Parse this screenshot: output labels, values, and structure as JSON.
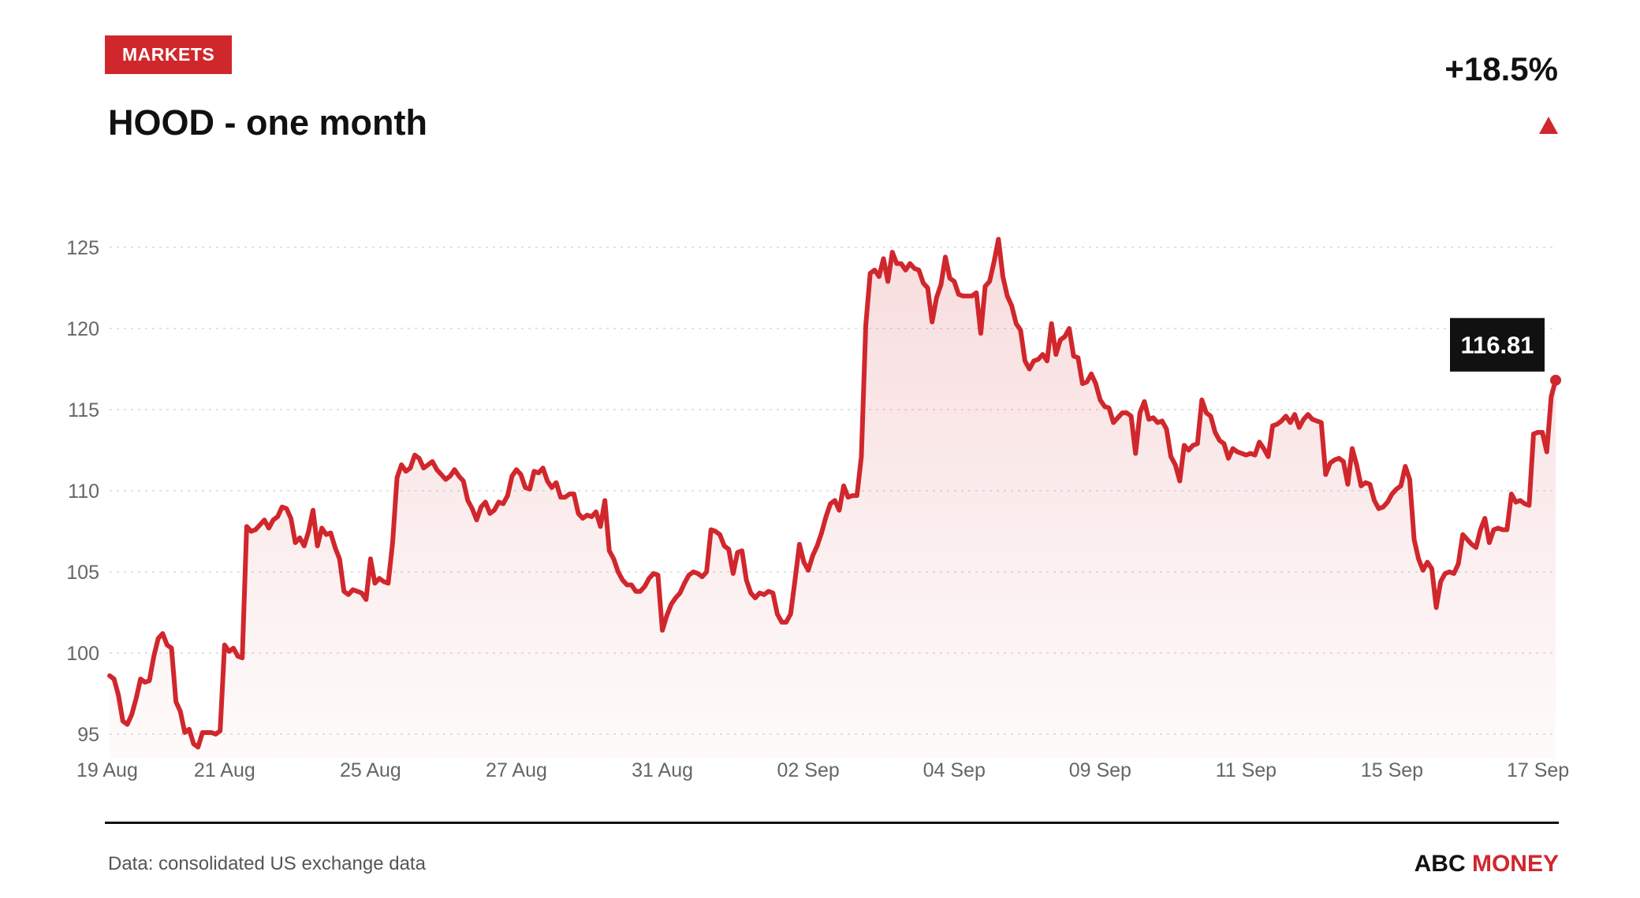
{
  "header": {
    "badge": "MARKETS",
    "title": "HOOD - one month",
    "change": "+18.5%",
    "direction_icon": "up-triangle-icon"
  },
  "footer": {
    "source": "Data: consolidated US exchange data",
    "brand_part1": "ABC",
    "brand_part2": "MONEY"
  },
  "colors": {
    "accent": "#d0272d",
    "text": "#111111",
    "axis_text": "#666666",
    "grid": "#d9d9d9",
    "label_bg": "#111111",
    "label_text": "#ffffff"
  },
  "chart_data": {
    "type": "area",
    "title": "HOOD - one month",
    "ylim": [
      93.5,
      126
    ],
    "yticks": [
      95,
      100,
      105,
      110,
      115,
      120,
      125
    ],
    "grid": "horizontal dotted",
    "xticks": [
      {
        "index": 0,
        "label": "19 Aug"
      },
      {
        "index": 26,
        "label": "21 Aug"
      },
      {
        "index": 59,
        "label": "25 Aug"
      },
      {
        "index": 92,
        "label": "27 Aug"
      },
      {
        "index": 125,
        "label": "31 Aug"
      },
      {
        "index": 158,
        "label": "02 Sep"
      },
      {
        "index": 191,
        "label": "04 Sep"
      },
      {
        "index": 224,
        "label": "09 Sep"
      },
      {
        "index": 257,
        "label": "11 Sep"
      },
      {
        "index": 290,
        "label": "15 Sep"
      },
      {
        "index": 323,
        "label": "17 Sep"
      }
    ],
    "last_value_label": "116.81",
    "values": [
      98.6,
      98.4,
      97.4,
      95.8,
      95.6,
      96.2,
      97.2,
      98.4,
      98.2,
      98.3,
      99.8,
      100.9,
      101.2,
      100.5,
      100.3,
      97.0,
      96.4,
      95.1,
      95.3,
      94.4,
      94.2,
      95.1,
      95.1,
      95.1,
      95.0,
      95.2,
      100.5,
      100.1,
      100.3,
      99.8,
      99.7,
      107.8,
      107.5,
      107.6,
      107.9,
      108.2,
      107.7,
      108.2,
      108.4,
      109.0,
      108.9,
      108.3,
      106.8,
      107.1,
      106.6,
      107.5,
      108.8,
      106.6,
      107.7,
      107.3,
      107.4,
      106.5,
      105.8,
      103.8,
      103.6,
      103.9,
      103.8,
      103.7,
      103.3,
      105.8,
      104.3,
      104.6,
      104.4,
      104.3,
      106.8,
      110.8,
      111.6,
      111.2,
      111.4,
      112.2,
      112.0,
      111.4,
      111.6,
      111.8,
      111.3,
      111.0,
      110.7,
      110.9,
      111.3,
      110.9,
      110.6,
      109.4,
      108.9,
      108.2,
      109.0,
      109.3,
      108.6,
      108.8,
      109.3,
      109.2,
      109.7,
      110.9,
      111.3,
      111.0,
      110.2,
      110.1,
      111.2,
      111.1,
      111.4,
      110.6,
      110.2,
      110.5,
      109.6,
      109.6,
      109.8,
      109.8,
      108.6,
      108.3,
      108.5,
      108.4,
      108.7,
      107.8,
      109.4,
      106.3,
      105.8,
      105.0,
      104.5,
      104.2,
      104.2,
      103.8,
      103.8,
      104.1,
      104.6,
      104.9,
      104.8,
      101.4,
      102.3,
      103.0,
      103.4,
      103.7,
      104.3,
      104.8,
      105.0,
      104.9,
      104.7,
      105.0,
      107.6,
      107.5,
      107.3,
      106.6,
      106.4,
      104.9,
      106.2,
      106.3,
      104.5,
      103.7,
      103.4,
      103.7,
      103.6,
      103.8,
      103.7,
      102.4,
      101.9,
      101.9,
      102.4,
      104.5,
      106.7,
      105.6,
      105.1,
      106.0,
      106.6,
      107.4,
      108.4,
      109.2,
      109.4,
      108.8,
      110.3,
      109.6,
      109.7,
      109.7,
      112.1,
      120.2,
      123.4,
      123.6,
      123.2,
      124.3,
      122.9,
      124.7,
      124.0,
      124.0,
      123.6,
      124.0,
      123.7,
      123.6,
      122.8,
      122.5,
      120.4,
      121.9,
      122.7,
      124.4,
      123.1,
      122.9,
      122.1,
      122.0,
      122.0,
      122.0,
      122.2,
      119.7,
      122.6,
      122.9,
      124.1,
      125.5,
      123.2,
      122.0,
      121.4,
      120.3,
      119.9,
      118.0,
      117.5,
      118.0,
      118.1,
      118.4,
      118.0,
      120.3,
      118.4,
      119.3,
      119.5,
      120.0,
      118.3,
      118.2,
      116.6,
      116.7,
      117.2,
      116.6,
      115.6,
      115.2,
      115.1,
      114.2,
      114.5,
      114.8,
      114.8,
      114.6,
      112.3,
      114.8,
      115.5,
      114.4,
      114.5,
      114.2,
      114.3,
      113.8,
      112.1,
      111.6,
      110.6,
      112.8,
      112.5,
      112.8,
      112.9,
      115.6,
      114.8,
      114.6,
      113.6,
      113.1,
      112.9,
      112.0,
      112.6,
      112.4,
      112.3,
      112.2,
      112.3,
      112.2,
      113.0,
      112.6,
      112.1,
      114.0,
      114.1,
      114.3,
      114.6,
      114.2,
      114.7,
      113.9,
      114.4,
      114.7,
      114.4,
      114.3,
      114.2,
      111.0,
      111.7,
      111.9,
      112.0,
      111.8,
      110.4,
      112.6,
      111.6,
      110.3,
      110.5,
      110.4,
      109.4,
      108.9,
      109.0,
      109.3,
      109.8,
      110.1,
      110.3,
      111.5,
      110.7,
      107.0,
      105.8,
      105.1,
      105.6,
      105.2,
      102.8,
      104.4,
      104.9,
      105.0,
      104.9,
      105.5,
      107.3,
      107.0,
      106.7,
      106.5,
      107.6,
      108.3,
      106.8,
      107.6,
      107.7,
      107.6,
      107.6,
      109.8,
      109.3,
      109.4,
      109.2,
      109.1,
      113.5,
      113.6,
      113.6,
      112.4,
      115.8,
      116.81
    ]
  }
}
